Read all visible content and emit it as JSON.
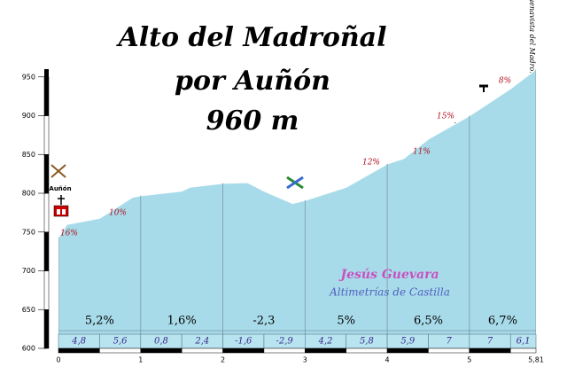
{
  "chart_data": {
    "type": "area",
    "title": [
      "Alto del Madroñal",
      "por Auñón",
      "960 m"
    ],
    "summit_label": "Buenavista del Madroñal",
    "start_label": "Auñón",
    "credits": [
      "Jesús Guevara",
      "Altimetrías de Castilla"
    ],
    "color": "#a8dbe9",
    "x": [
      0,
      0.1,
      0.5,
      0.9,
      1.0,
      1.5,
      1.6,
      2.0,
      2.3,
      2.5,
      2.85,
      3.0,
      3.5,
      4.0,
      4.2,
      4.5,
      5.0,
      5.5,
      5.81
    ],
    "values": [
      743,
      760,
      768,
      795,
      797,
      803,
      808,
      813,
      814,
      803,
      787,
      791,
      808,
      838,
      845,
      870,
      900,
      935,
      960
    ],
    "xlim": [
      0,
      5.81
    ],
    "ylim": [
      600,
      960
    ],
    "xticks": [
      0,
      1,
      2,
      3,
      4,
      {
        "value": 5.81,
        "label": "5,81"
      },
      5
    ],
    "yticks": [
      600,
      650,
      700,
      750,
      800,
      850,
      900,
      950
    ],
    "segment_gradients": {
      "values": [
        4.8,
        5.6,
        0.8,
        2.4,
        -1.6,
        -2.9,
        4.2,
        5.8,
        5.9,
        7,
        7,
        6.1
      ],
      "value_labels": [
        "4,8",
        "5,6",
        "0,8",
        "2,4",
        "-1,6",
        "-2,9",
        "4,2",
        "5,8",
        "5,9",
        "7",
        "7",
        "6,1"
      ]
    },
    "km_gradients": {
      "values": [
        5.2,
        1.6,
        -2.3,
        5,
        6.5,
        6.7
      ],
      "value_labels": [
        "5,2%",
        "1,6%",
        "-2,3",
        "5%",
        "6,5%",
        "6,7%"
      ]
    },
    "annotations": [
      "16%",
      "10%",
      "12%",
      "11%",
      "15%",
      "8%"
    ]
  }
}
